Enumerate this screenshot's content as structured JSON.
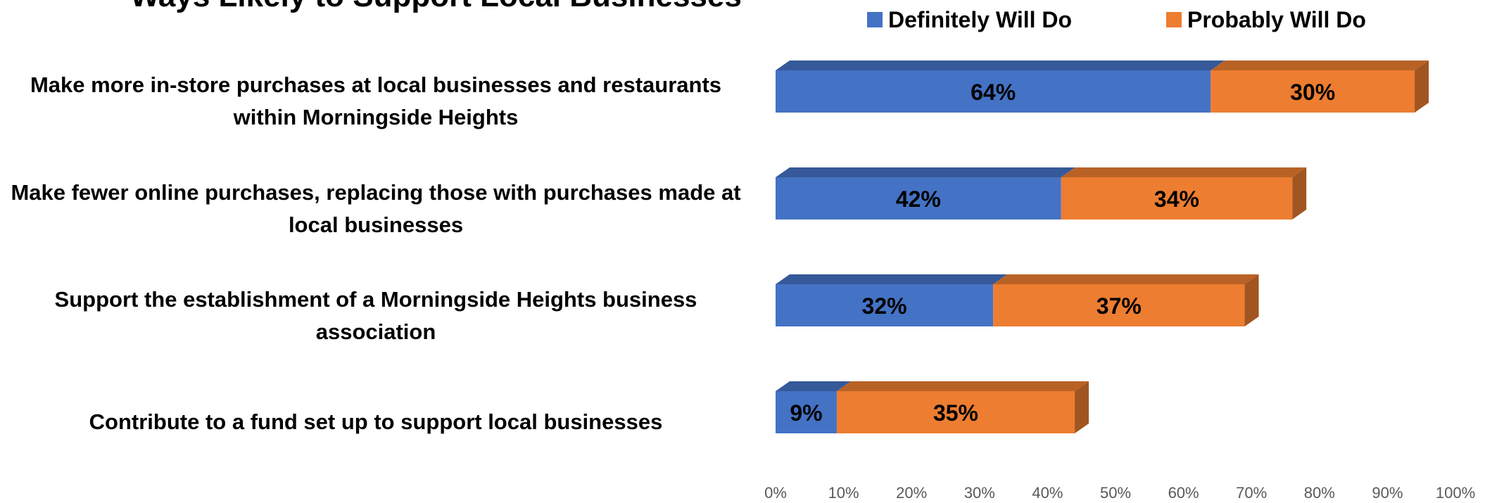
{
  "chart_data": {
    "type": "bar",
    "orientation": "horizontal",
    "stacked": true,
    "three_d": true,
    "title": "Ways Likely to Support Local Businesses",
    "categories": [
      "Make more in-store purchases at local businesses and restaurants within Morningside Heights",
      "Make fewer online purchases, replacing those with purchases made at local businesses",
      "Support the establishment of a Morningside Heights business association",
      "Contribute to a fund set up to support local businesses"
    ],
    "series": [
      {
        "name": "Definitely Will Do",
        "values": [
          64,
          42,
          32,
          9
        ],
        "labels": [
          "64%",
          "42%",
          "32%",
          "9%"
        ],
        "color": "#4472C4"
      },
      {
        "name": "Probably Will Do",
        "values": [
          30,
          34,
          37,
          35
        ],
        "labels": [
          "30%",
          "34%",
          "37%",
          "35%"
        ],
        "color": "#ED7D31"
      }
    ],
    "xlim": [
      0,
      100
    ],
    "xticks": [
      "0%",
      "10%",
      "20%",
      "30%",
      "40%",
      "50%",
      "60%",
      "70%",
      "80%",
      "90%",
      "100%"
    ],
    "legend_position": "top",
    "grid": false
  }
}
